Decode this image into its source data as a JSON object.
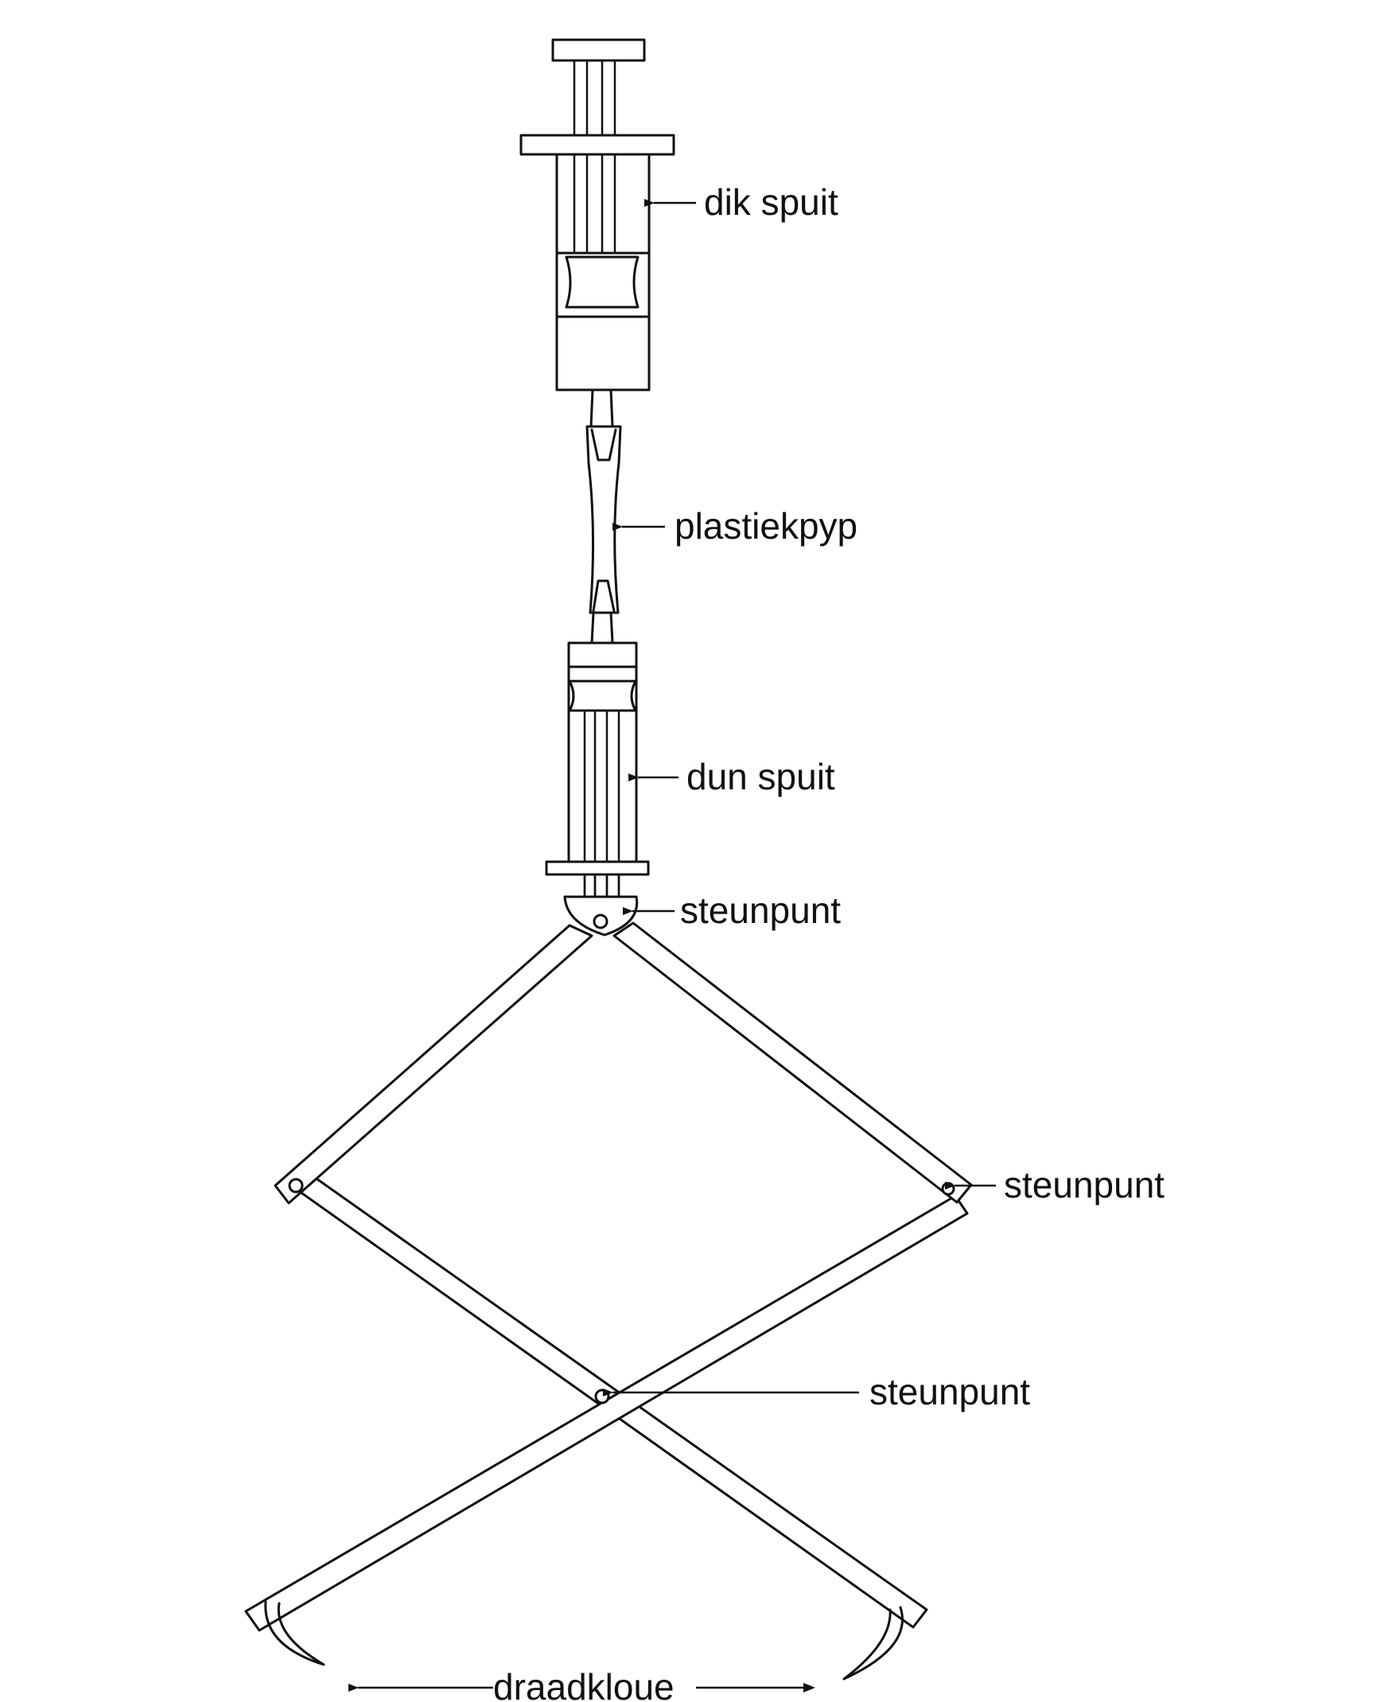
{
  "labels": {
    "thick_syringe": "dik spuit",
    "plastic_tube": "plastiekpyp",
    "thin_syringe": "dun spuit",
    "pivot_top": "steunpunt",
    "pivot_right": "steunpunt",
    "pivot_center": "steunpunt",
    "wire_claws": "draadkloue"
  },
  "colors": {
    "ink": "#111111",
    "background": "#ffffff"
  }
}
